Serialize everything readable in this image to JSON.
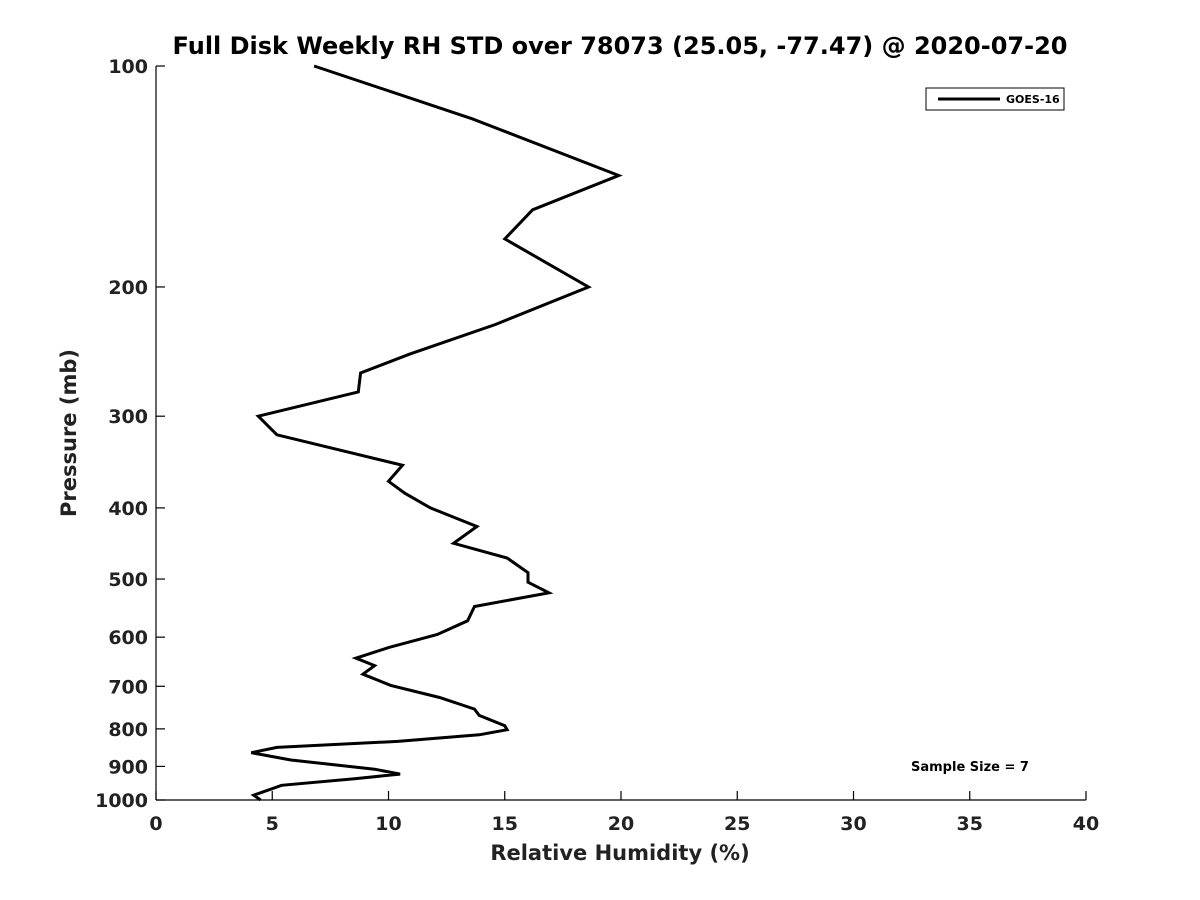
{
  "chart_data": {
    "type": "line",
    "title": "Full Disk Weekly RH STD over 78073 (25.05, -77.47) @ 2020-07-20",
    "xlabel": "Relative Humidity (%)",
    "ylabel": "Pressure (mb)",
    "xlim": [
      0,
      40
    ],
    "ylim": [
      1000,
      100
    ],
    "y_scale": "log",
    "x_ticks": [
      0,
      5,
      10,
      15,
      20,
      25,
      30,
      35,
      40
    ],
    "y_ticks": [
      100,
      200,
      300,
      400,
      500,
      600,
      700,
      800,
      900,
      1000
    ],
    "grid": false,
    "legend": {
      "placement": "top-right",
      "entries": [
        "GOES-16"
      ]
    },
    "annotation": "Sample Size = 7",
    "series": [
      {
        "name": "GOES-16",
        "color": "#000000",
        "x": [
          6.8,
          13.6,
          19.9,
          16.2,
          15.0,
          18.6,
          14.6,
          10.9,
          8.8,
          8.7,
          4.4,
          5.2,
          10.6,
          10.0,
          10.7,
          11.8,
          13.8,
          12.8,
          15.1,
          16.0,
          16.0,
          16.9,
          13.7,
          13.4,
          12.1,
          10.0,
          8.6,
          9.4,
          8.9,
          10.1,
          12.2,
          13.7,
          13.9,
          15.0,
          15.1,
          13.9,
          10.4,
          5.2,
          4.1,
          5.8,
          9.4,
          10.5,
          8.6,
          5.4,
          4.2,
          4.5
        ],
        "y": [
          100,
          118,
          141,
          157,
          172,
          200,
          225,
          247,
          262,
          278,
          300,
          318,
          350,
          368,
          382,
          400,
          424,
          447,
          468,
          490,
          505,
          522,
          545,
          570,
          595,
          620,
          641,
          656,
          674,
          698,
          725,
          752,
          767,
          792,
          802,
          815,
          832,
          848,
          862,
          882,
          908,
          922,
          935,
          955,
          985,
          1000
        ]
      }
    ]
  }
}
